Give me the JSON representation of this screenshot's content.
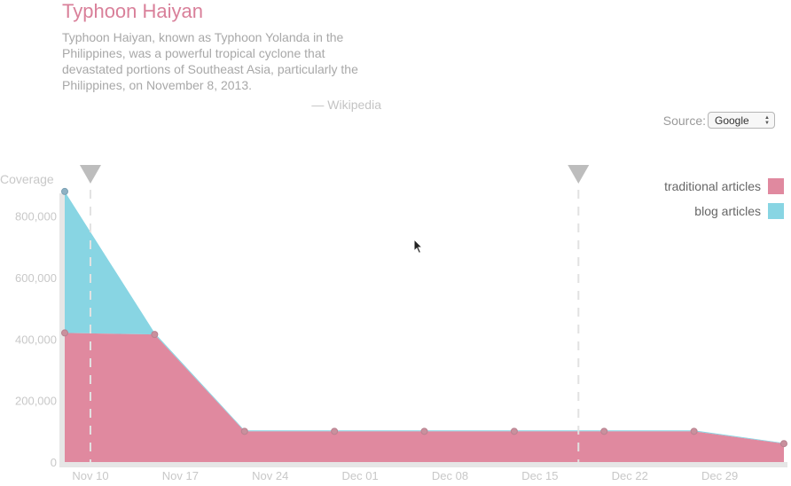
{
  "header": {
    "title": "Typhoon Haiyan",
    "description": "Typhoon Haiyan, known as Typhoon Yolanda in the Philippines, was a powerful tropical cyclone that devastated portions of Southeast Asia, particularly the Philippines, on November 8, 2013.",
    "attribution": "— Wikipedia"
  },
  "source": {
    "label": "Source:",
    "selected": "Google"
  },
  "legend": {
    "items": [
      {
        "label": "traditional articles",
        "color": "#e0899f"
      },
      {
        "label": "blog articles",
        "color": "#88d5e3"
      }
    ]
  },
  "chart_data": {
    "type": "area",
    "stacked": true,
    "ylabel": "Coverage",
    "xlabel": "",
    "y_ticks": [
      "0",
      "200,000",
      "400,000",
      "600,000",
      "800,000"
    ],
    "ylim": [
      0,
      900000
    ],
    "x": [
      "2013-11-08",
      "2013-11-15",
      "2013-11-22",
      "2013-11-29",
      "2013-12-06",
      "2013-12-13",
      "2013-12-20",
      "2013-12-27",
      "2014-01-03"
    ],
    "x_ticks": [
      "Nov 10",
      "Nov 17",
      "Nov 24",
      "Dec 01",
      "Dec 08",
      "Dec 15",
      "Dec 22",
      "Dec 29"
    ],
    "series": [
      {
        "name": "traditional articles",
        "color": "#e0899f",
        "values": [
          420000,
          415000,
          100000,
          100000,
          100000,
          100000,
          100000,
          100000,
          60000
        ]
      },
      {
        "name": "blog articles",
        "color": "#88d5e3",
        "values": [
          460000,
          5000,
          3000,
          3000,
          3000,
          3000,
          3000,
          3000,
          2000
        ]
      }
    ],
    "markers": [
      "2013-11-10",
      "2013-12-18"
    ],
    "grid": false,
    "legend_position": "top-right"
  }
}
